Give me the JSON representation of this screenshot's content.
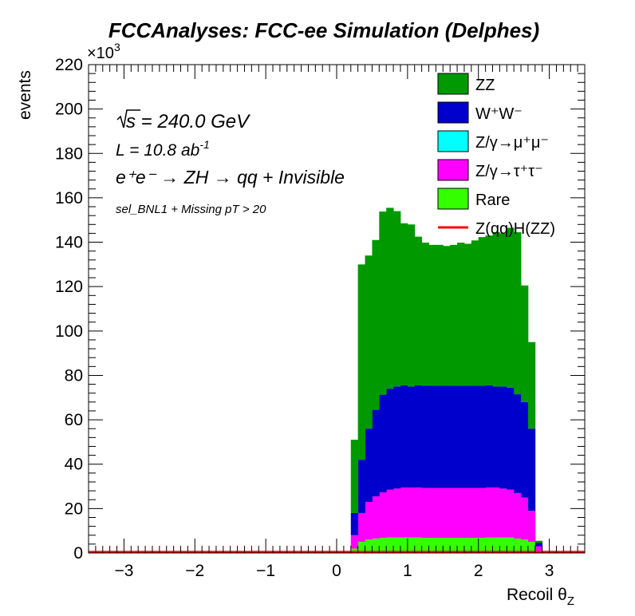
{
  "chart_data": {
    "type": "stacked-histogram",
    "title": "FCCAnalyses: FCC-ee Simulation (Delphes)",
    "xlabel": "Recoil θ",
    "xlabel_sub": "Z",
    "ylabel": "events",
    "y_exponent_base": "×10",
    "y_exponent_power": "3",
    "xlim": [
      -3.5,
      3.5
    ],
    "ylim": [
      0,
      220
    ],
    "x_ticks": [
      -3,
      -2,
      -1,
      0,
      1,
      2,
      3
    ],
    "x_tick_labels": [
      "−3",
      "−2",
      "−1",
      "0",
      "1",
      "2",
      "3"
    ],
    "y_ticks": [
      0,
      20,
      40,
      60,
      80,
      100,
      120,
      140,
      160,
      180,
      200,
      220
    ],
    "y_tick_labels": [
      "0",
      "20",
      "40",
      "60",
      "80",
      "100",
      "120",
      "140",
      "160",
      "180",
      "200",
      "220"
    ],
    "grid": false,
    "legend_position": "top-right",
    "annotations": {
      "sqrt_s": "s",
      "energy": " = 240.0 GeV",
      "lumi": "L = 10.8 ab",
      "lumi_power": "-1",
      "process": "e⁺e⁻ → ZH → qq + Invisible",
      "selection": "sel_BNL1 + Missing pT > 20"
    },
    "bin_edges_start": -3.5,
    "bin_width": 0.1,
    "x": [
      0.25,
      0.35,
      0.45,
      0.55,
      0.65,
      0.75,
      0.85,
      0.95,
      1.05,
      1.15,
      1.25,
      1.35,
      1.45,
      1.55,
      1.65,
      1.75,
      1.85,
      1.95,
      2.05,
      2.15,
      2.25,
      2.35,
      2.45,
      2.55,
      2.65,
      2.75,
      2.85
    ],
    "series": [
      {
        "name": "Rare",
        "color": "#33ff00",
        "values": [
          2,
          5,
          6,
          6.5,
          6.8,
          7,
          7,
          7,
          7,
          7,
          6.8,
          6.8,
          6.8,
          6.8,
          6.8,
          6.8,
          6.8,
          6.8,
          6.8,
          7,
          7,
          7,
          7,
          6.5,
          6,
          5,
          1
        ]
      },
      {
        "name": "Z/γ→τ⁺τ⁻",
        "color": "#ff00ff",
        "values": [
          6,
          13,
          17,
          19,
          20.5,
          21.5,
          22,
          22.5,
          22.5,
          22.5,
          22.5,
          22.5,
          22.5,
          22.5,
          22.5,
          22.5,
          22.5,
          22.5,
          22.5,
          22.5,
          22.5,
          22,
          21.5,
          20.5,
          19,
          14,
          2
        ]
      },
      {
        "name": "Z/γ→μ⁺μ⁻",
        "color": "#00ffff",
        "values": [
          0,
          0,
          0,
          0,
          0,
          0,
          0,
          0,
          0,
          0,
          0,
          0,
          0,
          0,
          0,
          0,
          0,
          0,
          0,
          0,
          0,
          0,
          0,
          0,
          0,
          0,
          0
        ]
      },
      {
        "name": "W⁺W⁻",
        "color": "#0000cc",
        "values": [
          10,
          24,
          33,
          39,
          44,
          45.5,
          46,
          46,
          45.5,
          46,
          46,
          46,
          46,
          46,
          46,
          46,
          46,
          46,
          46,
          46,
          45.5,
          46,
          46,
          44.5,
          43,
          37,
          1.5
        ]
      },
      {
        "name": "ZZ",
        "color": "#009900",
        "values": [
          33,
          88,
          78,
          76.5,
          82.5,
          81.5,
          79,
          73,
          73,
          67,
          64.5,
          63.5,
          63.5,
          63,
          63.5,
          64.5,
          64,
          65.5,
          67,
          67.5,
          69.5,
          69,
          72,
          73,
          52.5,
          39,
          1
        ]
      }
    ],
    "signal": {
      "name": "Z(qq)H(ZZ)",
      "color": "#ff0000",
      "value": 0.5
    }
  }
}
